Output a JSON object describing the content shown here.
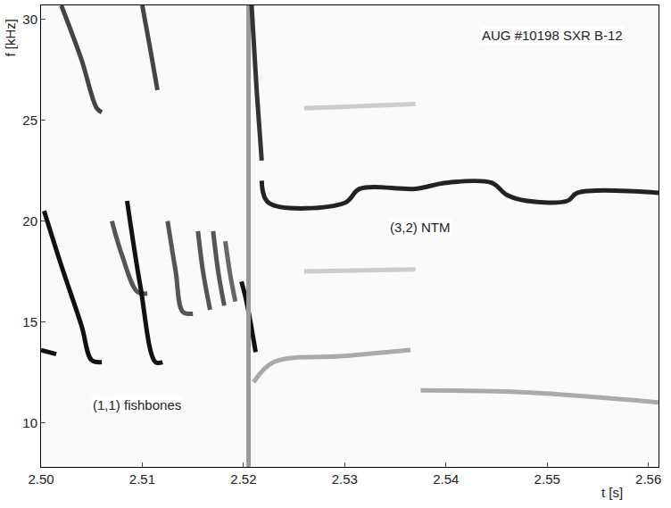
{
  "chart_data": {
    "type": "line",
    "x_label": "t [s]",
    "y_label": "f [kHz]",
    "xlim": [
      2.5,
      2.561
    ],
    "ylim": [
      7.8,
      30.7
    ],
    "xticks": [
      {
        "value": 2.5,
        "label": "2.50"
      },
      {
        "value": 2.51,
        "label": "2.51"
      },
      {
        "value": 2.52,
        "label": "2.52"
      },
      {
        "value": 2.53,
        "label": "2.53"
      },
      {
        "value": 2.54,
        "label": "2.54"
      },
      {
        "value": 2.55,
        "label": "2.55"
      },
      {
        "value": 2.56,
        "label": "2.56"
      }
    ],
    "yticks": [
      10,
      15,
      20,
      25,
      30
    ],
    "grid": false,
    "annotations": [
      {
        "text": "AUG #10198 SXR B-12",
        "x": 2.5505,
        "y": 29.2
      },
      {
        "text": "(3,2) NTM",
        "x": 2.5375,
        "y": 19.7
      },
      {
        "text": "(1,1) fishbones",
        "x": 2.5095,
        "y": 10.9
      }
    ],
    "series": [
      {
        "color": "#111111",
        "x": [
          2.5,
          2.5015
        ],
        "values": [
          13.6,
          13.4
        ]
      },
      {
        "color": "#111111",
        "x": [
          2.5003,
          2.502,
          2.504,
          2.505,
          2.506
        ],
        "values": [
          20.5,
          17.8,
          14.8,
          13.1,
          13.0
        ]
      },
      {
        "color": "#444444",
        "x": [
          2.502,
          2.504,
          2.5055,
          2.506
        ],
        "values": [
          30.7,
          28.0,
          25.6,
          25.4
        ]
      },
      {
        "color": "#555555",
        "x": [
          2.507,
          2.508,
          2.5095,
          2.5105
        ],
        "values": [
          20.0,
          18.3,
          16.5,
          16.4
        ]
      },
      {
        "color": "#111111",
        "x": [
          2.5085,
          2.5098,
          2.5113,
          2.512
        ],
        "values": [
          21.0,
          16.8,
          13.0,
          13.0
        ]
      },
      {
        "color": "#444444",
        "x": [
          2.51,
          2.5108,
          2.5115
        ],
        "values": [
          30.7,
          28.5,
          26.5
        ]
      },
      {
        "color": "#555555",
        "x": [
          2.5125,
          2.5133,
          2.514,
          2.515
        ],
        "values": [
          20.0,
          17.5,
          15.5,
          15.4
        ]
      },
      {
        "color": "#555555",
        "x": [
          2.5155,
          2.516,
          2.5167
        ],
        "values": [
          19.5,
          17.5,
          15.6
        ]
      },
      {
        "color": "#555555",
        "x": [
          2.517,
          2.5175,
          2.5181
        ],
        "values": [
          19.5,
          17.5,
          15.8
        ]
      },
      {
        "color": "#666666",
        "x": [
          2.5182,
          2.5187,
          2.5192
        ],
        "values": [
          19.0,
          17.3,
          16.0
        ]
      },
      {
        "color": "#111111",
        "x": [
          2.5198,
          2.5203,
          2.5212
        ],
        "values": [
          17.0,
          16.0,
          13.5
        ]
      },
      {
        "color": "#999999",
        "x": [
          2.5205,
          2.5205
        ],
        "values": [
          7.8,
          30.7
        ]
      },
      {
        "color": "#333333",
        "x": [
          2.5208,
          2.5213,
          2.5218
        ],
        "values": [
          30.7,
          26.5,
          23.0
        ]
      },
      {
        "color": "#222222",
        "x": [
          2.5218,
          2.5225,
          2.53,
          2.5315,
          2.537,
          2.54,
          2.5445,
          2.546,
          2.548,
          2.552,
          2.553,
          2.561
        ],
        "values": [
          22.0,
          20.9,
          20.9,
          21.6,
          21.6,
          21.9,
          21.9,
          21.3,
          21.0,
          21.0,
          21.4,
          21.4
        ]
      },
      {
        "color": "#aaaaaa",
        "x": [
          2.521,
          2.523,
          2.53,
          2.5365
        ],
        "values": [
          12.0,
          13.0,
          13.3,
          13.6
        ]
      },
      {
        "color": "#aaaaaa",
        "x": [
          2.5375,
          2.548,
          2.561
        ],
        "values": [
          11.6,
          11.5,
          11.0
        ]
      },
      {
        "color": "#cccccc",
        "x": [
          2.526,
          2.537
        ],
        "values": [
          25.6,
          25.8
        ]
      },
      {
        "color": "#cccccc",
        "x": [
          2.526,
          2.537
        ],
        "values": [
          17.5,
          17.6
        ]
      }
    ]
  }
}
